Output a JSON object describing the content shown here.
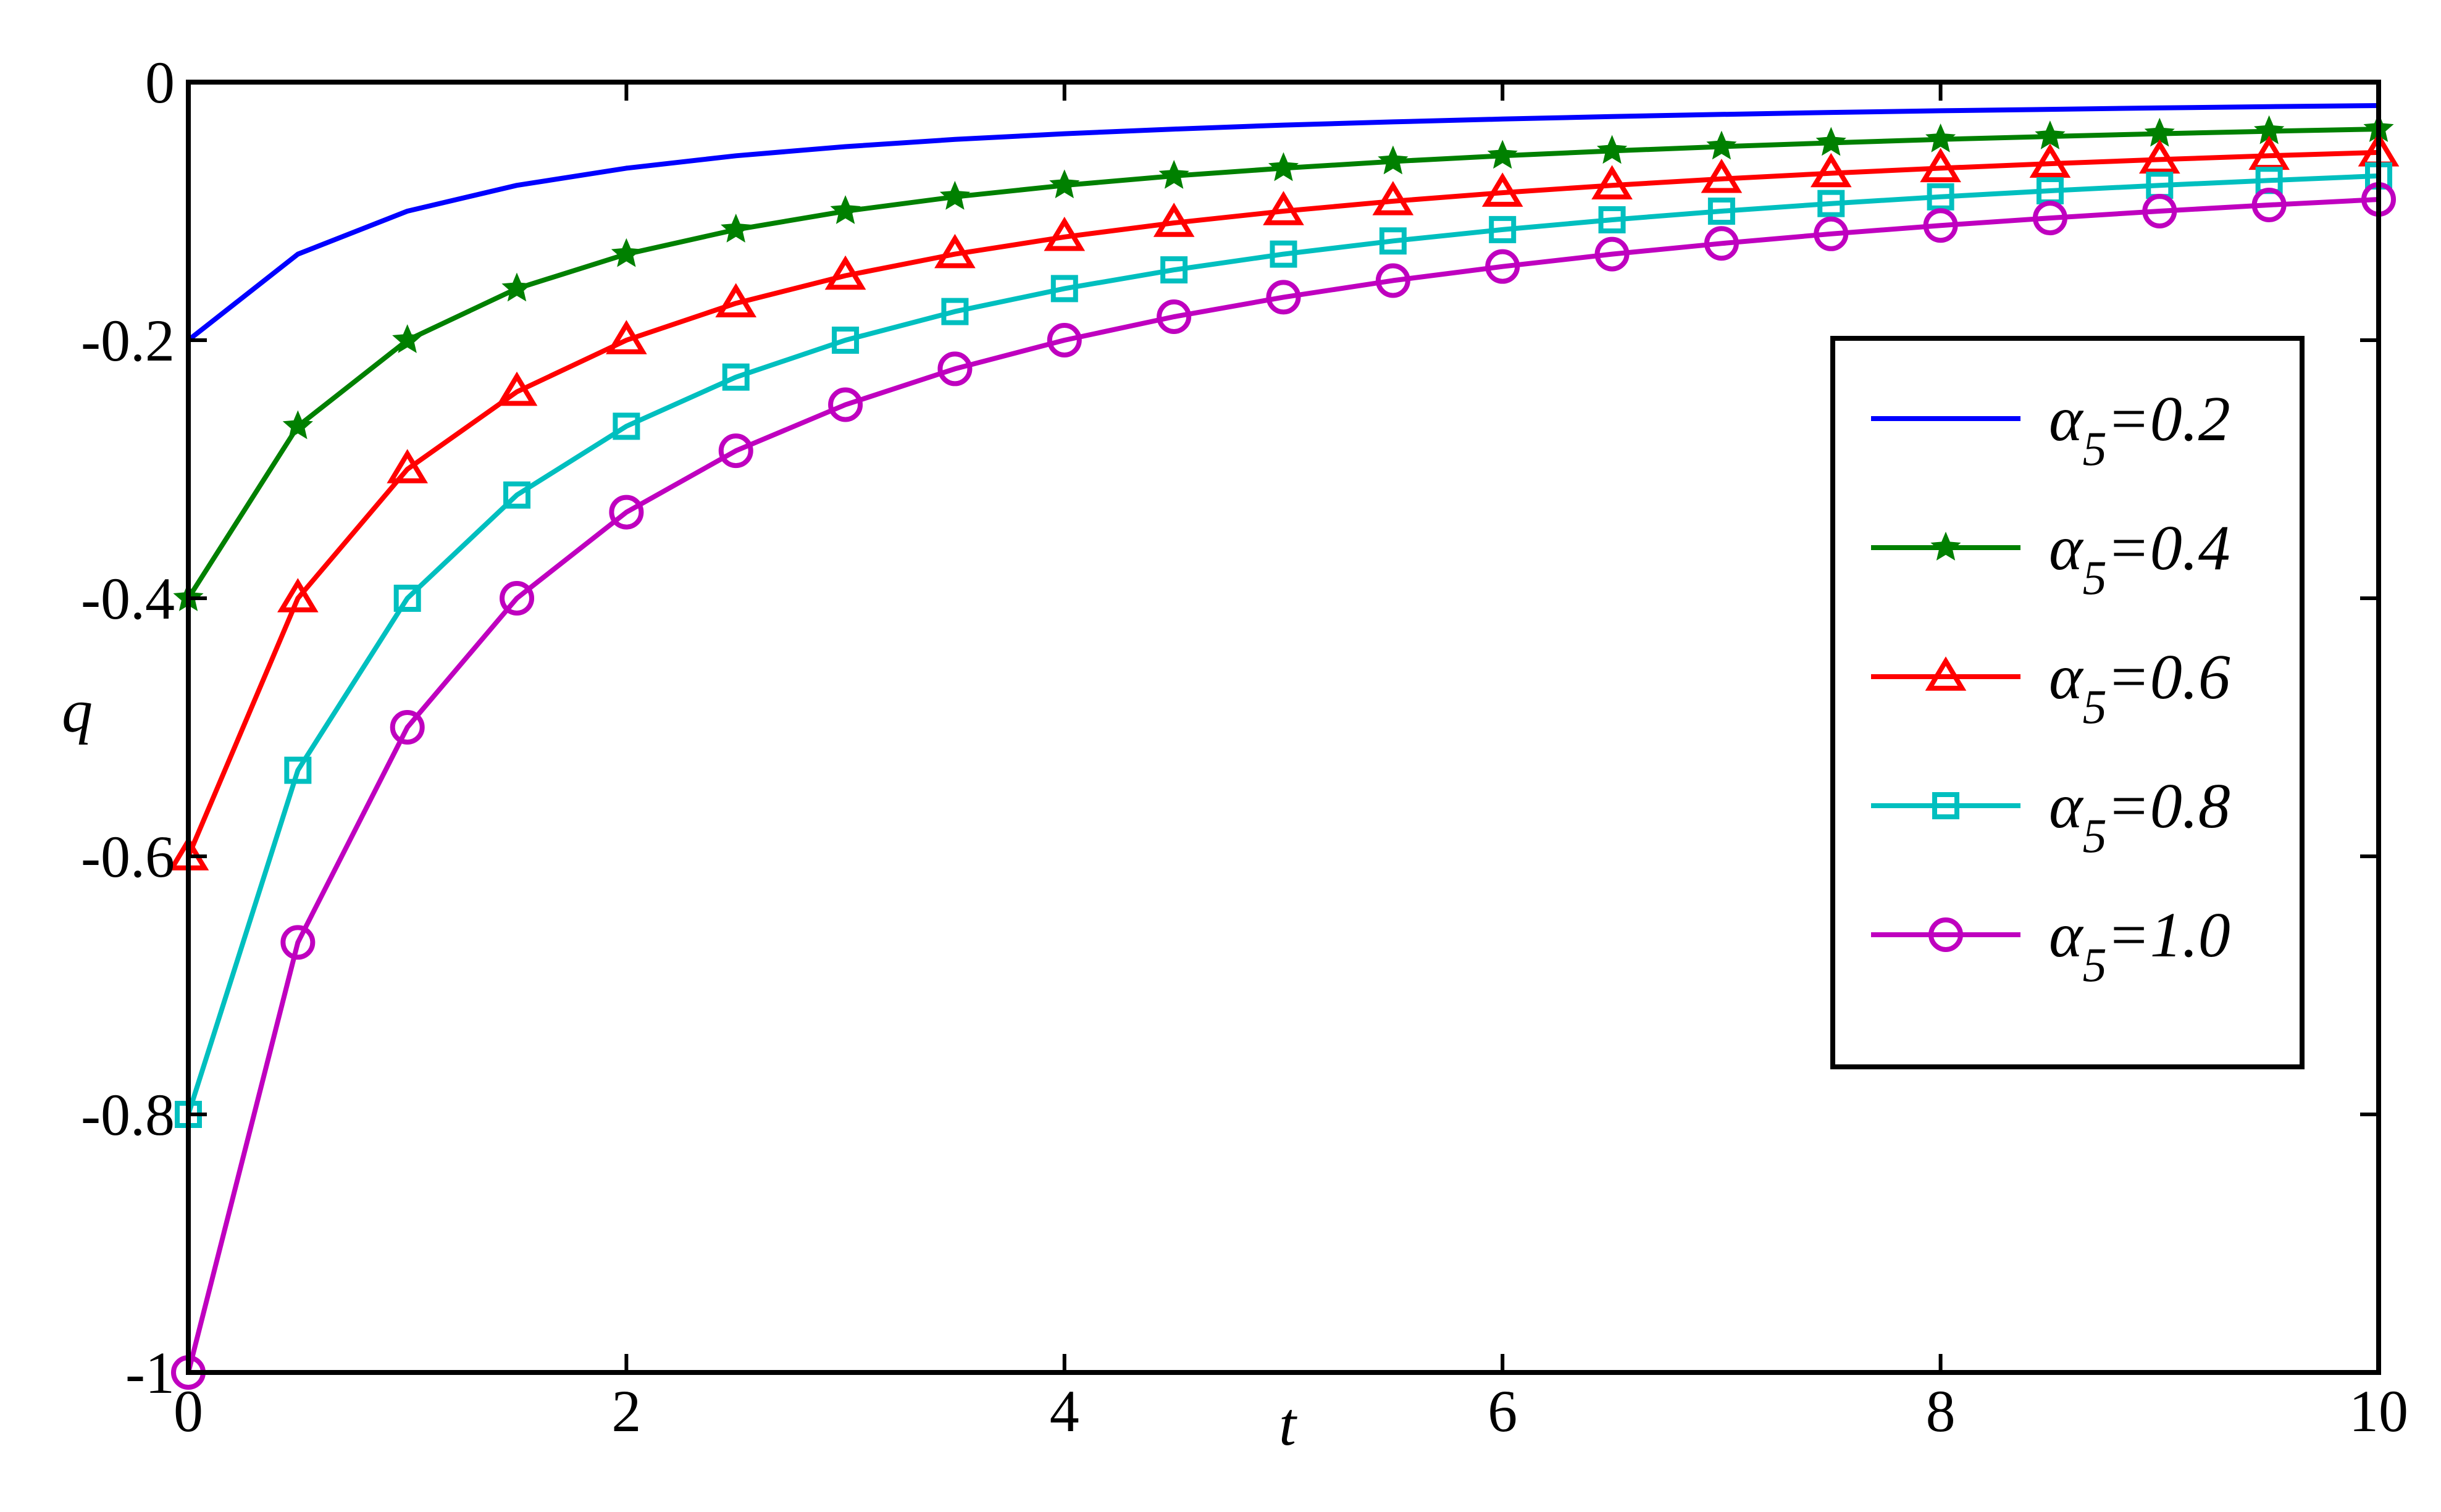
{
  "chart_data": {
    "type": "line",
    "title": "",
    "xlabel": "t",
    "ylabel": "q",
    "xlim": [
      0,
      10
    ],
    "ylim": [
      -1,
      0
    ],
    "xticks": [
      0,
      2,
      4,
      6,
      8,
      10
    ],
    "xtick_labels": [
      "0",
      "2",
      "4",
      "6",
      "8",
      "10"
    ],
    "yticks": [
      0,
      -0.2,
      -0.4,
      -0.6,
      -0.8,
      -1
    ],
    "ytick_labels": [
      "0",
      "-0.2",
      "-0.4",
      "-0.6",
      "-0.8",
      "-1"
    ],
    "grid": false,
    "legend_position": "right",
    "x": [
      0,
      0.5,
      1,
      1.5,
      2,
      2.5,
      3,
      3.5,
      4,
      4.5,
      5,
      5.5,
      6,
      6.5,
      7,
      7.5,
      8,
      8.5,
      9,
      9.5,
      10
    ],
    "series": [
      {
        "name": "α5=0.2",
        "legend": {
          "symbol": "α",
          "sub": "5",
          "rest": "=0.2"
        },
        "color": "#0000ff",
        "marker": "none",
        "values": [
          -0.2,
          -0.1333,
          -0.1,
          -0.08,
          -0.0667,
          -0.0571,
          -0.05,
          -0.0444,
          -0.04,
          -0.0364,
          -0.0333,
          -0.0308,
          -0.0286,
          -0.0267,
          -0.025,
          -0.0235,
          -0.0222,
          -0.0211,
          -0.02,
          -0.019,
          -0.0182
        ]
      },
      {
        "name": "α5=0.4",
        "legend": {
          "symbol": "α",
          "sub": "5",
          "rest": "=0.4"
        },
        "color": "#008000",
        "marker": "star",
        "values": [
          -0.4,
          -0.2667,
          -0.2,
          -0.16,
          -0.1333,
          -0.1143,
          -0.1,
          -0.0889,
          -0.08,
          -0.0727,
          -0.0667,
          -0.0615,
          -0.0571,
          -0.0533,
          -0.05,
          -0.0471,
          -0.0444,
          -0.0421,
          -0.04,
          -0.0381,
          -0.0364
        ]
      },
      {
        "name": "α5=0.6",
        "legend": {
          "symbol": "α",
          "sub": "5",
          "rest": "=0.6"
        },
        "color": "#ff0000",
        "marker": "triangle",
        "values": [
          -0.6,
          -0.4,
          -0.3,
          -0.24,
          -0.2,
          -0.1714,
          -0.15,
          -0.1333,
          -0.12,
          -0.1091,
          -0.1,
          -0.0923,
          -0.0857,
          -0.08,
          -0.075,
          -0.0706,
          -0.0667,
          -0.0632,
          -0.06,
          -0.0571,
          -0.0545
        ]
      },
      {
        "name": "α5=0.8",
        "legend": {
          "symbol": "α",
          "sub": "5",
          "rest": "=0.8"
        },
        "color": "#00bfbf",
        "marker": "square",
        "values": [
          -0.8,
          -0.5333,
          -0.4,
          -0.32,
          -0.2667,
          -0.2286,
          -0.2,
          -0.1778,
          -0.16,
          -0.1455,
          -0.1333,
          -0.1231,
          -0.1143,
          -0.1067,
          -0.1,
          -0.0941,
          -0.0889,
          -0.0842,
          -0.08,
          -0.0762,
          -0.0727
        ]
      },
      {
        "name": "α5=1.0",
        "legend": {
          "symbol": "α",
          "sub": "5",
          "rest": "=1.0"
        },
        "color": "#bf00bf",
        "marker": "circle",
        "values": [
          -1.0,
          -0.6667,
          -0.5,
          -0.4,
          -0.3333,
          -0.2857,
          -0.25,
          -0.2222,
          -0.2,
          -0.1818,
          -0.1667,
          -0.1538,
          -0.1429,
          -0.1333,
          -0.125,
          -0.1176,
          -0.1111,
          -0.1053,
          -0.1,
          -0.0952,
          -0.0909
        ]
      }
    ]
  }
}
